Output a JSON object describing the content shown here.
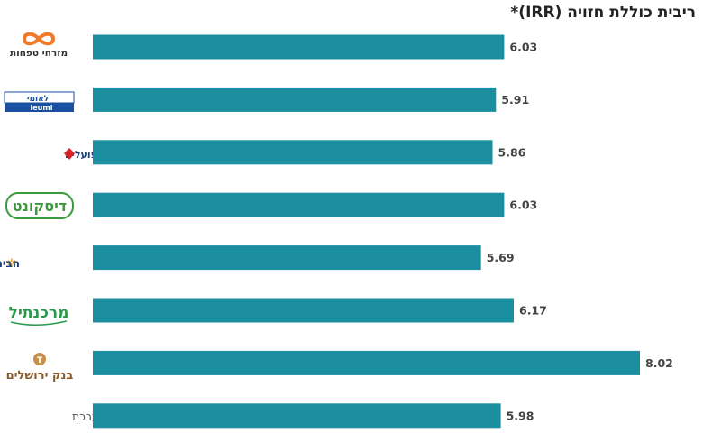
{
  "chart_data": {
    "type": "bar",
    "orientation": "horizontal",
    "title": "ריבית כוללת חזויה (IRR)*",
    "categories": [
      "מזרחי טפחות",
      "לאומי",
      "בנק הפועלים",
      "דיסקונט",
      "הבינלאומי",
      "מרכנתיל",
      "בנק ירושלים",
      "סך מערכת"
    ],
    "values": [
      6.03,
      5.91,
      5.86,
      6.03,
      5.69,
      6.17,
      8.02,
      5.98
    ],
    "value_labels": [
      "6.03",
      "5.91",
      "5.86",
      "6.03",
      "5.69",
      "6.17",
      "8.02",
      "5.98"
    ],
    "xlim": [
      0,
      8.02
    ],
    "grid": false,
    "legend": "none",
    "bar_color": "#1b8ea0"
  },
  "logos": {
    "mizrahi": {
      "text": "מזרחי טפחות",
      "color": "#333333",
      "accent": "#f07a2a"
    },
    "leumi": {
      "text_he": "לאומי",
      "text_en": "leumi",
      "color": "#1a4fa0"
    },
    "hapoalim": {
      "text": "בנק הפועלים",
      "color": "#1a3f7a",
      "accent": "#d8232a"
    },
    "discount": {
      "text": "דיסקונט",
      "color": "#3a9a3a"
    },
    "first_international": {
      "text": "הבינלאומי",
      "color": "#1a3f7a",
      "accent": "#f0a020"
    },
    "mercantile": {
      "text": "מרכנתיל",
      "color": "#2a9a4a"
    },
    "jerusalem": {
      "text": "בנק ירושלים",
      "color": "#8a5a2a",
      "accent": "#c8904a"
    },
    "system": {
      "text": "סך מערכת",
      "color": "#555555"
    }
  }
}
